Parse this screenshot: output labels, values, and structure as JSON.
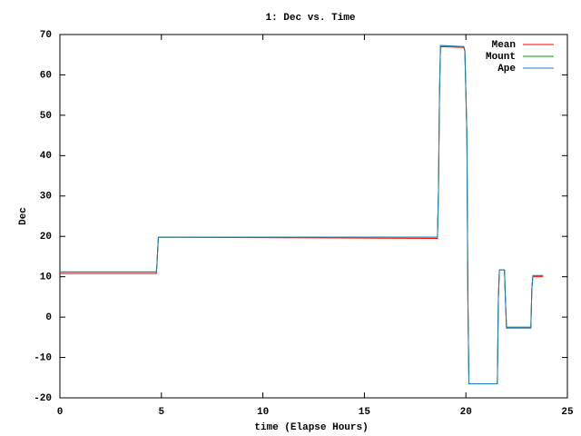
{
  "chart_data": {
    "type": "line",
    "title": "1: Dec vs. Time",
    "x_label": "time (Elapse Hours)",
    "y_label": "Dec",
    "x": [
      0,
      4.75,
      4.78,
      4.85,
      18.6,
      18.65,
      18.7,
      18.75,
      19.9,
      19.95,
      20.05,
      20.1,
      20.15,
      21.55,
      21.6,
      21.65,
      21.9,
      21.95,
      22.0,
      23.2,
      23.25,
      23.3,
      23.8
    ],
    "series": [
      {
        "name": "Mean",
        "color": "#ff0000",
        "values": [
          10.8,
          10.8,
          13,
          19.8,
          19.5,
          31.5,
          55.5,
          67,
          66.8,
          65.8,
          45,
          4,
          -16.5,
          -16.5,
          4.5,
          11.7,
          11.7,
          4,
          -2.7,
          -2.7,
          7,
          10,
          10
        ]
      },
      {
        "name": "Mount",
        "color": "#00a000",
        "values": [
          11.2,
          11.2,
          13,
          19.8,
          19.8,
          31.5,
          55.5,
          67.3,
          67,
          66,
          45,
          4,
          -16.5,
          -16.5,
          4.5,
          11.7,
          11.7,
          4,
          -2.5,
          -2.5,
          7,
          10.3,
          10.3
        ]
      },
      {
        "name": "Ape",
        "color": "#1a7fc4",
        "values": [
          11.2,
          11.2,
          13,
          19.8,
          19.8,
          31.5,
          55.5,
          67.3,
          67,
          66,
          45,
          4,
          -16.5,
          -16.5,
          4.5,
          11.7,
          11.7,
          4,
          -2.5,
          -2.5,
          7,
          10.3,
          10.3
        ]
      }
    ],
    "xlim": [
      0,
      25
    ],
    "xticks": [
      0,
      5,
      10,
      15,
      20,
      25
    ],
    "ylim": [
      -20,
      70
    ],
    "yticks": [
      -20,
      -10,
      0,
      10,
      20,
      30,
      40,
      50,
      60,
      70
    ],
    "legend": "top-right"
  }
}
